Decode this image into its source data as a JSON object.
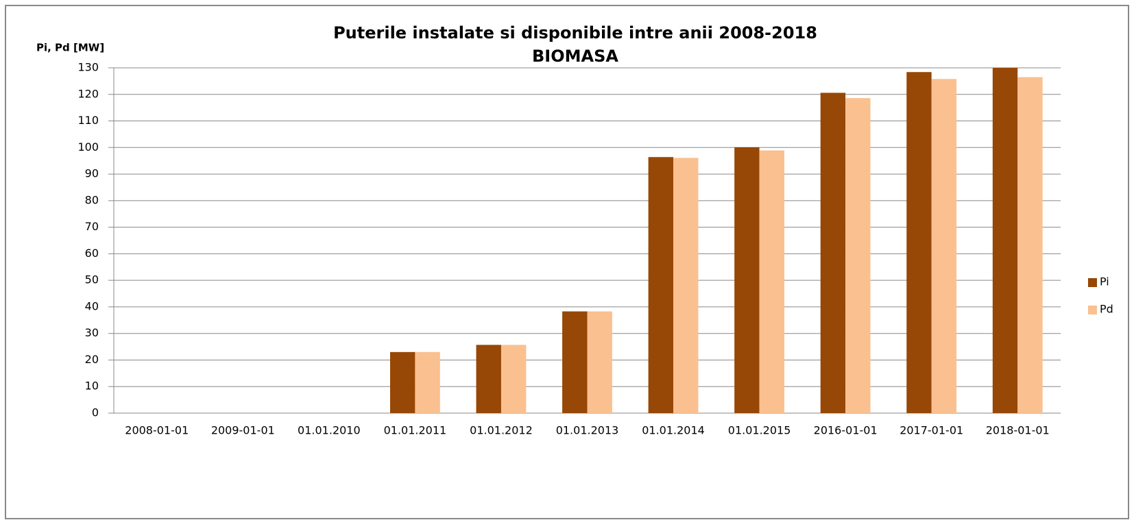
{
  "chart_data": {
    "type": "bar",
    "title": "Puterile instalate si disponibile intre anii 2008-2018",
    "subtitle": "BIOMASA",
    "y_label": "Pi, Pd [MW]",
    "categories": [
      "2008-01-01",
      "2009-01-01",
      "01.01.2010",
      "01.01.2011",
      "01.01.2012",
      "01.01.2013",
      "01.01.2014",
      "01.01.2015",
      "2016-01-01",
      "2017-01-01",
      "2018-01-01"
    ],
    "series": [
      {
        "name": "Pi",
        "color": "#974706",
        "values": [
          0,
          0,
          0,
          23,
          25.7,
          38.3,
          96.4,
          100.1,
          120.6,
          128.4,
          130
        ]
      },
      {
        "name": "Pd",
        "color": "#fac090",
        "values": [
          0,
          0,
          0,
          23,
          25.7,
          38.3,
          96.1,
          98.9,
          118.6,
          125.8,
          126.5
        ]
      }
    ],
    "ylim": [
      0,
      130
    ],
    "yticks": [
      0,
      10,
      20,
      30,
      40,
      50,
      60,
      70,
      80,
      90,
      100,
      110,
      120,
      130
    ],
    "grid": true,
    "legend": "right"
  }
}
